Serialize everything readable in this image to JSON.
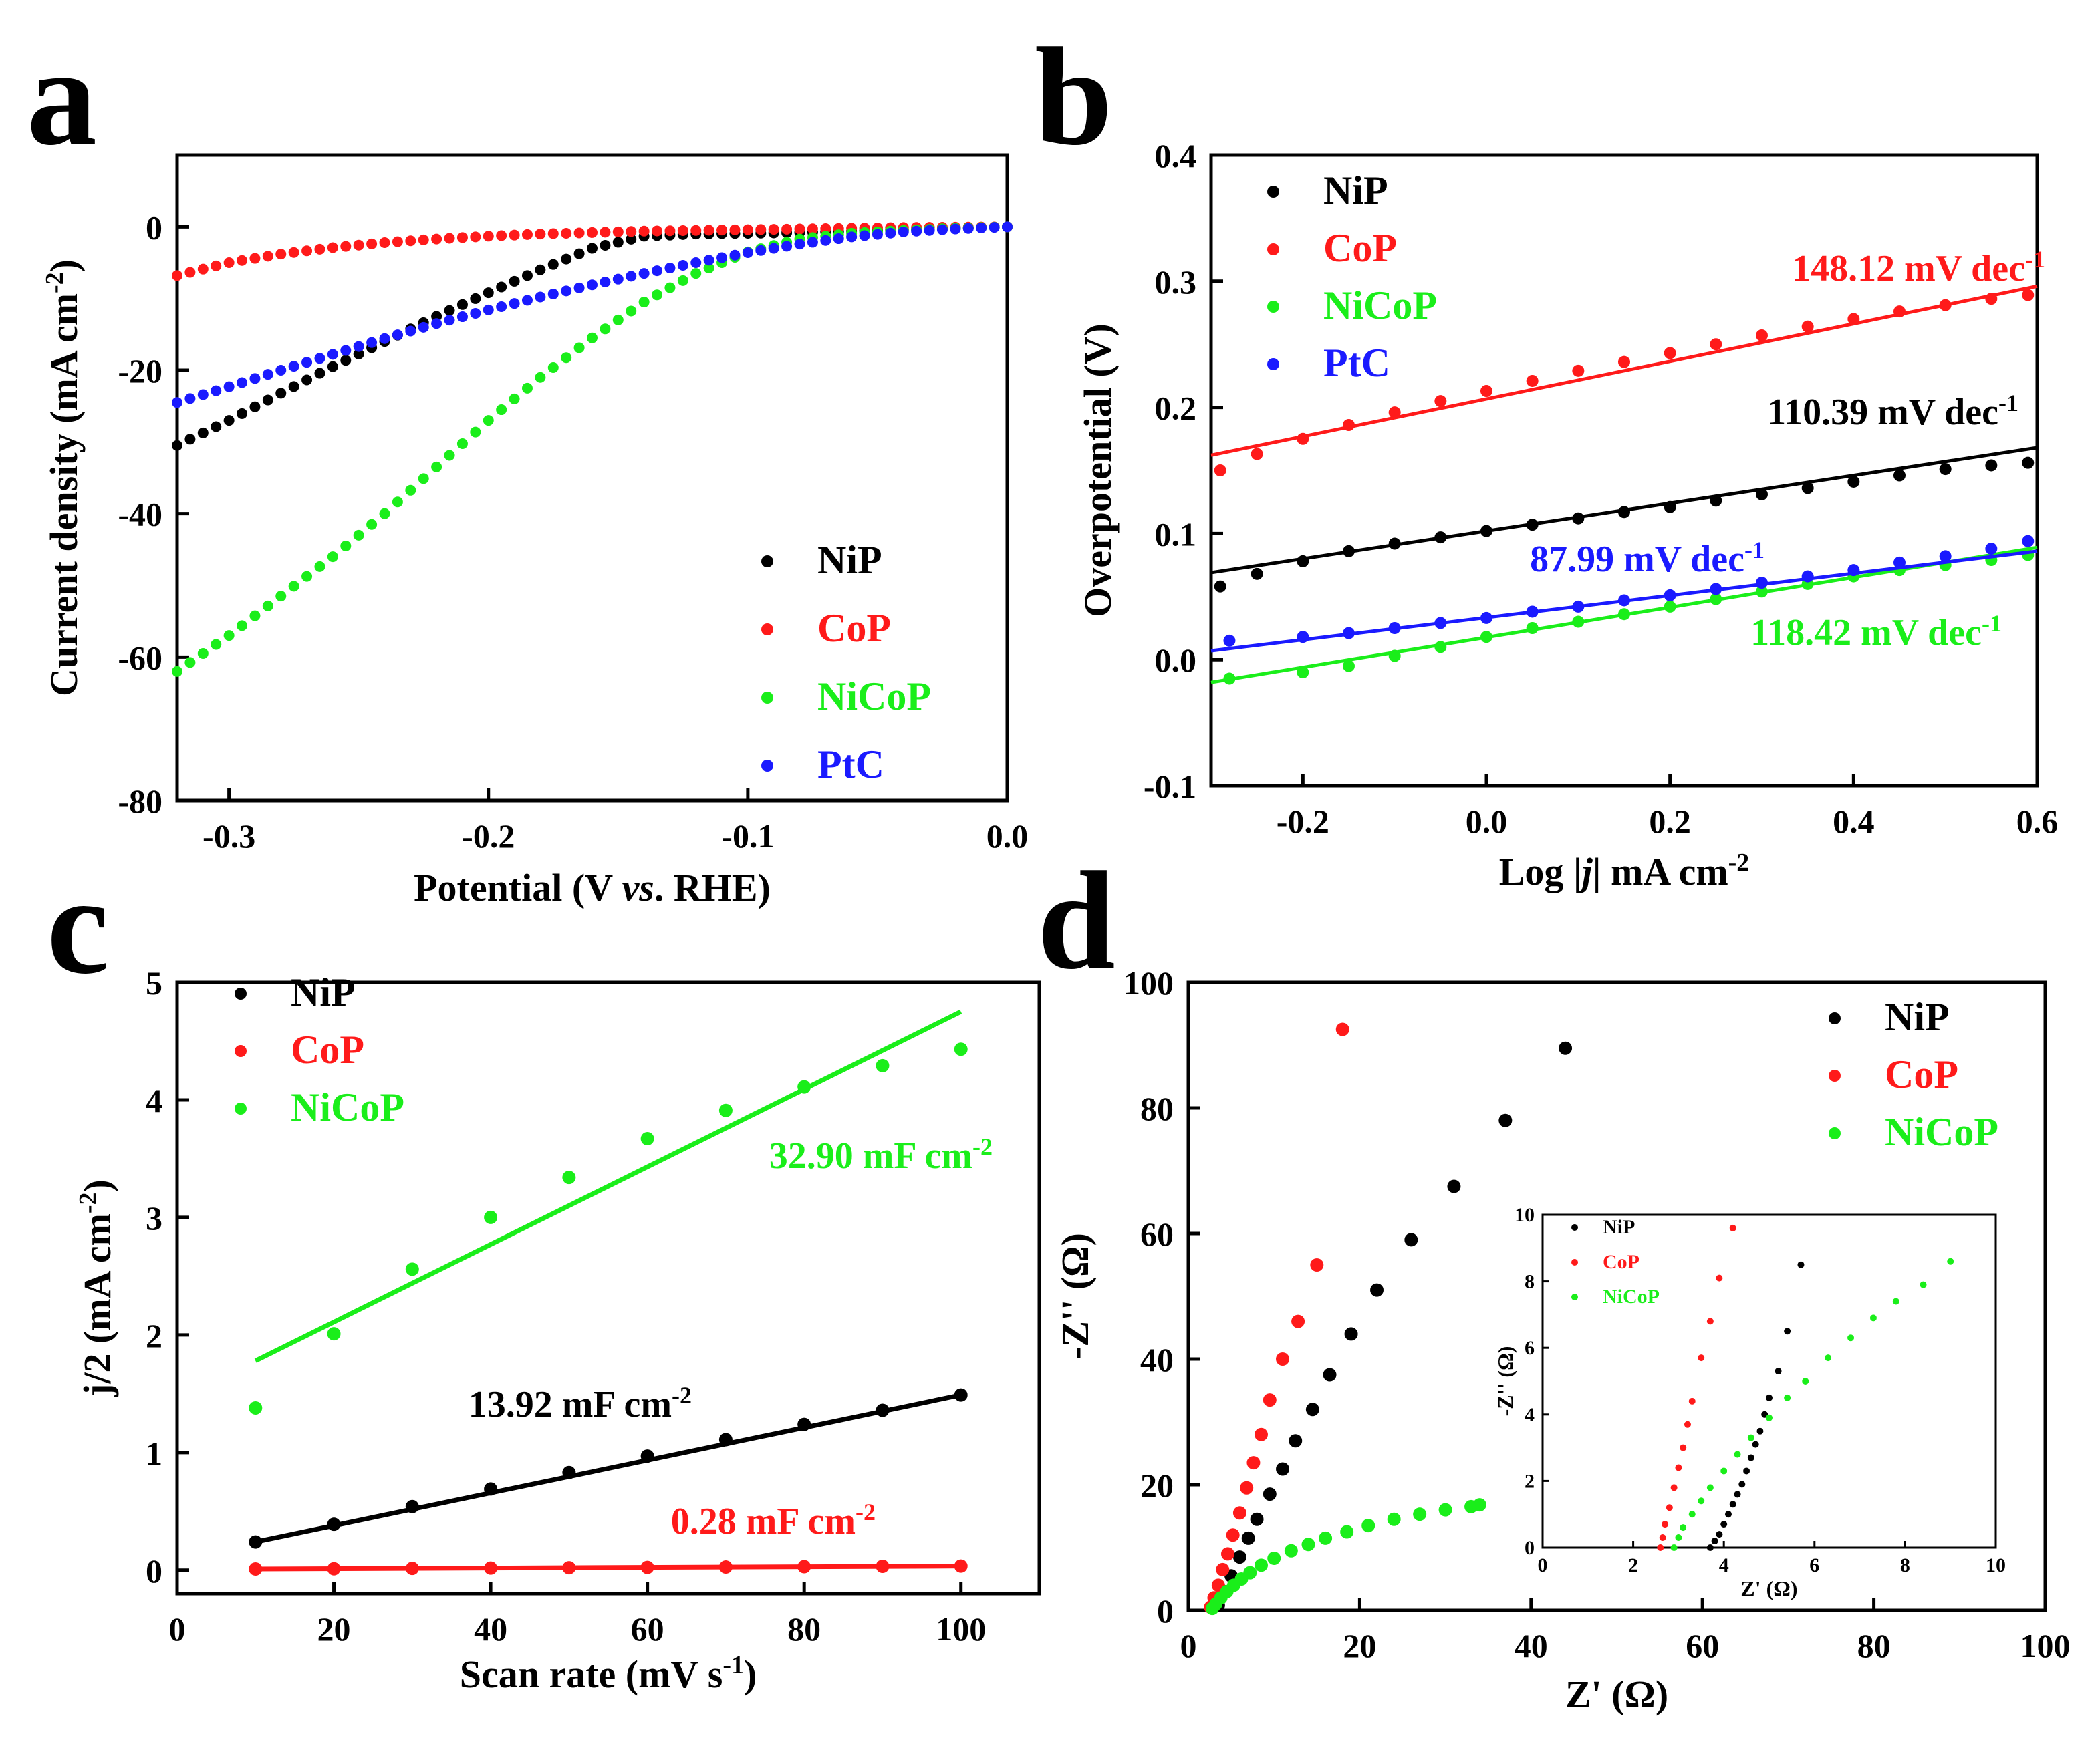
{
  "colors": {
    "NiP": "#000000",
    "CoP": "#ff1a1a",
    "NiCoP": "#1aee1a",
    "PtC": "#1a1aff"
  },
  "chart_data": [
    {
      "id": "a",
      "panel_label": "a",
      "type": "scatter",
      "xlabel": "Potential (V vs. RHE)",
      "xlabel_parts": [
        "Potential (V ",
        "vs",
        ". RHE)"
      ],
      "ylabel": "Current density (mA cm-2)",
      "ylabel_parts": [
        "Current density (mA cm",
        "-2",
        ")"
      ],
      "xlim": [
        -0.32,
        0.0
      ],
      "ylim": [
        -80,
        10
      ],
      "xticks": [
        -0.3,
        -0.2,
        -0.1,
        0.0
      ],
      "xtick_labels": [
        "-0.3",
        "-0.2",
        "-0.1",
        "0.0"
      ],
      "yticks": [
        0,
        -20,
        -40,
        -60,
        -80
      ],
      "ytick_labels": [
        "0",
        "-20",
        "-40",
        "-60",
        "-80"
      ],
      "legend": {
        "position": "bottom-right",
        "entries": [
          "NiP",
          "CoP",
          "NiCoP",
          "PtC"
        ]
      },
      "series": [
        {
          "name": "NiP",
          "x": [
            -0.32,
            -0.3,
            -0.28,
            -0.26,
            -0.24,
            -0.22,
            -0.2,
            -0.18,
            -0.16,
            -0.14,
            -0.12,
            -0.1,
            -0.08,
            -0.06,
            -0.04,
            -0.02,
            0.0
          ],
          "y": [
            -30.5,
            -27.0,
            -23.2,
            -19.5,
            -16.0,
            -12.5,
            -9.2,
            -6.0,
            -3.0,
            -1.3,
            -1.0,
            -0.9,
            -0.8,
            -0.6,
            -0.4,
            -0.2,
            0.0
          ]
        },
        {
          "name": "CoP",
          "x": [
            -0.32,
            -0.3,
            -0.28,
            -0.26,
            -0.24,
            -0.22,
            -0.2,
            -0.18,
            -0.16,
            -0.14,
            -0.12,
            -0.1,
            -0.08,
            -0.06,
            -0.04,
            -0.02,
            0.0
          ],
          "y": [
            -6.8,
            -5.0,
            -3.8,
            -2.9,
            -2.2,
            -1.7,
            -1.3,
            -1.0,
            -0.8,
            -0.6,
            -0.5,
            -0.4,
            -0.3,
            -0.2,
            -0.1,
            -0.05,
            0.0
          ]
        },
        {
          "name": "NiCoP",
          "x": [
            -0.32,
            -0.3,
            -0.28,
            -0.26,
            -0.24,
            -0.22,
            -0.2,
            -0.18,
            -0.16,
            -0.14,
            -0.12,
            -0.1,
            -0.08,
            -0.06,
            -0.04,
            -0.02,
            0.0
          ],
          "y": [
            -62.0,
            -57.0,
            -51.5,
            -46.0,
            -40.0,
            -33.5,
            -27.0,
            -21.0,
            -15.5,
            -10.5,
            -6.5,
            -3.5,
            -1.7,
            -0.9,
            -0.5,
            -0.2,
            0.0
          ]
        },
        {
          "name": "PtC",
          "x": [
            -0.32,
            -0.3,
            -0.28,
            -0.26,
            -0.24,
            -0.22,
            -0.2,
            -0.18,
            -0.16,
            -0.14,
            -0.12,
            -0.1,
            -0.08,
            -0.06,
            -0.04,
            -0.02,
            0.0
          ],
          "y": [
            -24.5,
            -22.3,
            -20.0,
            -17.8,
            -15.6,
            -13.5,
            -11.6,
            -9.8,
            -8.1,
            -6.5,
            -5.0,
            -3.6,
            -2.4,
            -1.4,
            -0.7,
            -0.3,
            0.0
          ]
        }
      ]
    },
    {
      "id": "b",
      "panel_label": "b",
      "type": "scatter",
      "xlabel": "Log |j| mA cm-2",
      "xlabel_parts": [
        "Log |",
        "j",
        "| mA cm",
        "-2"
      ],
      "ylabel": "Overpotential (V)",
      "xlim": [
        -0.3,
        0.6
      ],
      "ylim": [
        -0.1,
        0.4
      ],
      "xticks": [
        -0.2,
        0.0,
        0.2,
        0.4,
        0.6
      ],
      "xtick_labels": [
        "-0.2",
        "0.0",
        "0.2",
        "0.4",
        "0.6"
      ],
      "yticks": [
        -0.1,
        0.0,
        0.1,
        0.2,
        0.3,
        0.4
      ],
      "ytick_labels": [
        "-0.1",
        "0.0",
        "0.1",
        "0.2",
        "0.3",
        "0.4"
      ],
      "legend": {
        "position": "top-left",
        "entries": [
          "NiP",
          "CoP",
          "NiCoP",
          "PtC"
        ]
      },
      "annotations": [
        {
          "series": "CoP",
          "text": "148.12 mV dec",
          "sup": "-1",
          "anchor": [
            0.6,
            0.305
          ]
        },
        {
          "series": "NiP",
          "text": "110.39 mV dec",
          "sup": "-1",
          "anchor": [
            0.6,
            0.2
          ]
        },
        {
          "series": "PtC",
          "text": "87.99 mV dec",
          "sup": "-1",
          "anchor": [
            0.32,
            0.077
          ]
        },
        {
          "series": "NiCoP",
          "text": "118.42 mV dec",
          "sup": "-1",
          "anchor": [
            0.6,
            0.012
          ]
        }
      ],
      "series": [
        {
          "name": "NiP",
          "x": [
            -0.29,
            -0.25,
            -0.2,
            -0.15,
            -0.1,
            -0.05,
            0.0,
            0.05,
            0.1,
            0.15,
            0.2,
            0.25,
            0.3,
            0.35,
            0.4,
            0.45,
            0.5,
            0.55,
            0.59
          ],
          "y": [
            0.058,
            0.068,
            0.078,
            0.086,
            0.092,
            0.097,
            0.102,
            0.107,
            0.112,
            0.117,
            0.121,
            0.126,
            0.131,
            0.136,
            0.141,
            0.146,
            0.151,
            0.154,
            0.156
          ],
          "fit": [
            [
              -0.3,
              0.069
            ],
            [
              0.6,
              0.168
            ]
          ]
        },
        {
          "name": "CoP",
          "x": [
            -0.29,
            -0.25,
            -0.2,
            -0.15,
            -0.1,
            -0.05,
            0.0,
            0.05,
            0.1,
            0.15,
            0.2,
            0.25,
            0.3,
            0.35,
            0.4,
            0.45,
            0.5,
            0.55,
            0.59
          ],
          "y": [
            0.15,
            0.163,
            0.175,
            0.186,
            0.196,
            0.205,
            0.213,
            0.221,
            0.229,
            0.236,
            0.243,
            0.25,
            0.257,
            0.264,
            0.27,
            0.276,
            0.281,
            0.286,
            0.289
          ],
          "fit": [
            [
              -0.3,
              0.162
            ],
            [
              0.6,
              0.296
            ]
          ]
        },
        {
          "name": "NiCoP",
          "x": [
            -0.28,
            -0.2,
            -0.15,
            -0.1,
            -0.05,
            0.0,
            0.05,
            0.1,
            0.15,
            0.2,
            0.25,
            0.3,
            0.35,
            0.4,
            0.45,
            0.5,
            0.55,
            0.59
          ],
          "y": [
            -0.015,
            -0.01,
            -0.005,
            0.003,
            0.01,
            0.018,
            0.025,
            0.03,
            0.036,
            0.042,
            0.048,
            0.054,
            0.06,
            0.066,
            0.071,
            0.075,
            0.079,
            0.083
          ],
          "fit": [
            [
              -0.3,
              -0.018
            ],
            [
              0.6,
              0.089
            ]
          ]
        },
        {
          "name": "PtC",
          "x": [
            -0.28,
            -0.2,
            -0.15,
            -0.1,
            -0.05,
            0.0,
            0.05,
            0.1,
            0.15,
            0.2,
            0.25,
            0.3,
            0.35,
            0.4,
            0.45,
            0.5,
            0.55,
            0.59
          ],
          "y": [
            0.015,
            0.018,
            0.021,
            0.025,
            0.029,
            0.033,
            0.038,
            0.042,
            0.047,
            0.051,
            0.056,
            0.061,
            0.066,
            0.071,
            0.077,
            0.082,
            0.088,
            0.094
          ],
          "fit": [
            [
              -0.3,
              0.007
            ],
            [
              0.6,
              0.086
            ]
          ]
        }
      ]
    },
    {
      "id": "c",
      "panel_label": "c",
      "type": "scatter",
      "xlabel": "Scan rate (mV s-1)",
      "xlabel_parts": [
        "Scan rate (mV s",
        "-1",
        ")"
      ],
      "ylabel": "j/2 (mA cm-2)",
      "ylabel_parts": [
        "j/2 (mA cm",
        "-2",
        ")"
      ],
      "xlim": [
        0,
        110
      ],
      "ylim": [
        -0.2,
        5
      ],
      "xticks": [
        0,
        20,
        40,
        60,
        80,
        100
      ],
      "xtick_labels": [
        "0",
        "20",
        "40",
        "60",
        "80",
        "100"
      ],
      "yticks": [
        0,
        1,
        2,
        3,
        4,
        5
      ],
      "ytick_labels": [
        "0",
        "1",
        "2",
        "3",
        "4",
        "5"
      ],
      "legend": {
        "position": "top-left",
        "entries": [
          "NiP",
          "CoP",
          "NiCoP"
        ]
      },
      "annotations": [
        {
          "series": "NiCoP",
          "text": "32.90 mF cm",
          "sup": "-2",
          "anchor": [
            66,
            3.4
          ]
        },
        {
          "series": "NiP",
          "text": "13.92 mF cm",
          "sup": "-2",
          "anchor": [
            19,
            1.3
          ]
        },
        {
          "series": "CoP",
          "text": "0.28 mF cm",
          "sup": "-2",
          "anchor": [
            40,
            0.3
          ]
        }
      ],
      "series": [
        {
          "name": "NiP",
          "x": [
            10,
            20,
            30,
            40,
            50,
            60,
            70,
            80,
            90,
            100
          ],
          "y": [
            0.24,
            0.39,
            0.54,
            0.69,
            0.83,
            0.97,
            1.11,
            1.24,
            1.36,
            1.49
          ],
          "fit": [
            [
              10,
              0.24
            ],
            [
              100,
              1.49
            ]
          ]
        },
        {
          "name": "CoP",
          "x": [
            10,
            20,
            30,
            40,
            50,
            60,
            70,
            80,
            90,
            100
          ],
          "y": [
            0.01,
            0.012,
            0.015,
            0.018,
            0.021,
            0.024,
            0.027,
            0.03,
            0.033,
            0.035
          ],
          "fit": [
            [
              10,
              0.01
            ],
            [
              100,
              0.035
            ]
          ]
        },
        {
          "name": "NiCoP",
          "x": [
            10,
            20,
            30,
            40,
            50,
            60,
            70,
            80,
            90,
            100
          ],
          "y": [
            1.38,
            2.01,
            2.56,
            3.0,
            3.34,
            3.67,
            3.91,
            4.11,
            4.29,
            4.43
          ],
          "fit": [
            [
              10,
              1.78
            ],
            [
              100,
              4.75
            ]
          ]
        }
      ]
    },
    {
      "id": "d",
      "panel_label": "d",
      "type": "scatter",
      "xlabel": "Z' (Ω)",
      "ylabel": "-Z'' (Ω)",
      "xlim": [
        0,
        100
      ],
      "ylim": [
        0,
        100
      ],
      "xticks": [
        0,
        20,
        40,
        60,
        80,
        100
      ],
      "xtick_labels": [
        "0",
        "20",
        "40",
        "60",
        "80",
        "100"
      ],
      "yticks": [
        0,
        20,
        40,
        60,
        80,
        100
      ],
      "ytick_labels": [
        "0",
        "20",
        "40",
        "60",
        "80",
        "100"
      ],
      "legend": {
        "position": "top-right",
        "entries": [
          "NiP",
          "CoP",
          "NiCoP"
        ]
      },
      "series": [
        {
          "name": "NiP",
          "x": [
            3.5,
            4.2,
            5.0,
            6.0,
            7.0,
            8.0,
            9.5,
            11.0,
            12.5,
            14.5,
            16.5,
            19.0,
            22.0,
            26.0,
            31.0,
            37.0,
            44.0
          ],
          "y": [
            0.8,
            3.0,
            5.5,
            8.5,
            11.5,
            14.5,
            18.5,
            22.5,
            27.0,
            32.0,
            37.5,
            44.0,
            51.0,
            59.0,
            67.5,
            78.0,
            89.5
          ]
        },
        {
          "name": "CoP",
          "x": [
            2.6,
            3.0,
            3.5,
            4.0,
            4.6,
            5.2,
            6.0,
            6.8,
            7.6,
            8.5,
            9.5,
            11.0,
            12.8,
            15.0,
            18.0
          ],
          "y": [
            0.5,
            2.0,
            4.0,
            6.5,
            9.0,
            12.0,
            15.5,
            19.5,
            23.5,
            28.0,
            33.5,
            40.0,
            46.0,
            55.0,
            92.5
          ]
        },
        {
          "name": "NiCoP",
          "x": [
            2.8,
            3.2,
            3.8,
            4.5,
            5.3,
            6.2,
            7.2,
            8.5,
            10.0,
            12.0,
            14.0,
            16.0,
            18.5,
            21.0,
            24.0,
            27.0,
            30.0,
            33.0,
            34.0
          ],
          "y": [
            0.3,
            1.0,
            2.0,
            3.0,
            4.0,
            5.0,
            6.0,
            7.2,
            8.3,
            9.5,
            10.5,
            11.5,
            12.5,
            13.5,
            14.5,
            15.3,
            16.0,
            16.5,
            16.8
          ]
        }
      ],
      "inset": {
        "type": "scatter",
        "xlabel": "Z' (Ω)",
        "ylabel": "-Z'' (Ω)",
        "xlim": [
          0,
          10
        ],
        "ylim": [
          0,
          10
        ],
        "xticks": [
          0,
          2,
          4,
          6,
          8,
          10
        ],
        "xtick_labels": [
          "0",
          "2",
          "4",
          "6",
          "8",
          "10"
        ],
        "yticks": [
          0,
          2,
          4,
          6,
          8,
          10
        ],
        "ytick_labels": [
          "0",
          "2",
          "4",
          "6",
          "8",
          "10"
        ],
        "legend": {
          "position": "top-left",
          "entries": [
            "NiP",
            "CoP",
            "NiCoP"
          ]
        },
        "series": [
          {
            "name": "NiP",
            "x": [
              3.7,
              3.8,
              3.9,
              4.0,
              4.1,
              4.2,
              4.3,
              4.4,
              4.5,
              4.6,
              4.7,
              4.8,
              4.9,
              5.0,
              5.2,
              5.4,
              5.7
            ],
            "y": [
              0.0,
              0.2,
              0.4,
              0.7,
              1.0,
              1.3,
              1.6,
              1.9,
              2.3,
              2.7,
              3.1,
              3.5,
              4.0,
              4.5,
              5.3,
              6.5,
              8.5
            ]
          },
          {
            "name": "CoP",
            "x": [
              2.6,
              2.65,
              2.7,
              2.8,
              2.9,
              3.0,
              3.1,
              3.2,
              3.3,
              3.5,
              3.7,
              3.9,
              4.2
            ],
            "y": [
              0.0,
              0.3,
              0.7,
              1.2,
              1.8,
              2.4,
              3.0,
              3.7,
              4.4,
              5.7,
              6.8,
              8.1,
              9.6
            ]
          },
          {
            "name": "NiCoP",
            "x": [
              2.9,
              3.0,
              3.1,
              3.3,
              3.5,
              3.7,
              4.0,
              4.3,
              4.6,
              5.0,
              5.4,
              5.8,
              6.3,
              6.8,
              7.3,
              7.8,
              8.4,
              9.0
            ],
            "y": [
              0.0,
              0.3,
              0.6,
              1.0,
              1.4,
              1.8,
              2.3,
              2.8,
              3.3,
              3.9,
              4.5,
              5.0,
              5.7,
              6.3,
              6.9,
              7.4,
              7.9,
              8.6
            ]
          }
        ]
      }
    }
  ]
}
